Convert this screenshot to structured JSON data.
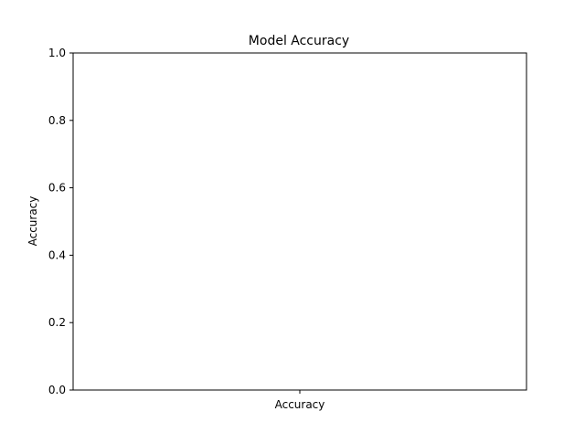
{
  "chart_data": {
    "type": "bar",
    "title": "Model Accuracy",
    "xlabel": "",
    "ylabel": "Accuracy",
    "categories": [
      "Accuracy"
    ],
    "values": [
      0
    ],
    "ylim": [
      0,
      1
    ],
    "yticks": [
      "0.0",
      "0.2",
      "0.4",
      "0.6",
      "0.8",
      "1.0"
    ],
    "grid": false,
    "legend": "none",
    "bar_color": "#1f77b4"
  }
}
